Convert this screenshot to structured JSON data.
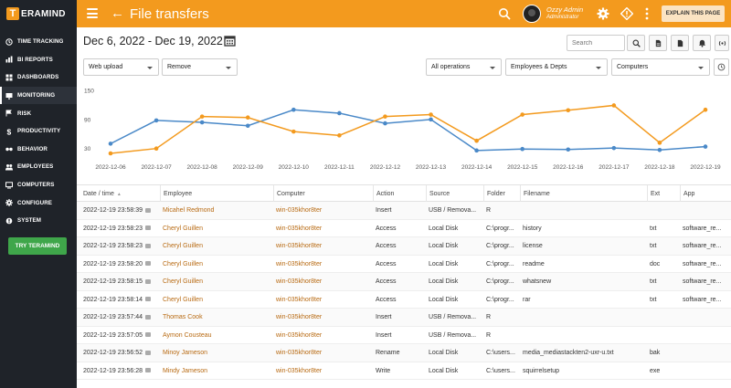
{
  "app": {
    "logo_letter": "T",
    "logo_text": "ERAMIND"
  },
  "sidebar": {
    "items": [
      {
        "label": "TIME TRACKING",
        "icon": "clock-icon"
      },
      {
        "label": "BI REPORTS",
        "icon": "chart-icon"
      },
      {
        "label": "DASHBOARDS",
        "icon": "dashboard-icon"
      },
      {
        "label": "MONITORING",
        "icon": "monitor-icon",
        "active": true
      },
      {
        "label": "RISK",
        "icon": "flag-icon"
      },
      {
        "label": "PRODUCTIVITY",
        "icon": "dollar-icon"
      },
      {
        "label": "BEHAVIOR",
        "icon": "glasses-icon"
      },
      {
        "label": "EMPLOYEES",
        "icon": "users-icon"
      },
      {
        "label": "COMPUTERS",
        "icon": "computer-icon"
      },
      {
        "label": "CONFIGURE",
        "icon": "gear-icon"
      },
      {
        "label": "SYSTEM",
        "icon": "system-icon"
      }
    ],
    "try_label": "TRY TERAMIND"
  },
  "header": {
    "title": "File transfers",
    "user_name": "Ozzy Admin",
    "user_role": "Administrator",
    "explain_label": "EXPLAIN THIS PAGE"
  },
  "toolbar": {
    "date_range": "Dec 6, 2022 - Dec 19, 2022",
    "search_placeholder": "Search"
  },
  "filters": {
    "type": "Web upload",
    "action": "Remove",
    "operations": "All operations",
    "scope": "Employees & Depts",
    "computers": "Computers"
  },
  "chart_data": {
    "type": "line",
    "x": [
      "2022-12-06",
      "2022-12-07",
      "2022-12-08",
      "2022-12-09",
      "2022-12-10",
      "2022-12-11",
      "2022-12-12",
      "2022-12-13",
      "2022-12-14",
      "2022-12-15",
      "2022-12-16",
      "2022-12-17",
      "2022-12-18",
      "2022-12-19"
    ],
    "yticks": [
      30,
      90,
      150
    ],
    "ylim": [
      20,
      150
    ],
    "series": [
      {
        "color": "#4a89c8",
        "values": [
          40,
          88,
          84,
          77,
          110,
          103,
          82,
          90,
          26,
          29,
          28,
          31,
          27,
          34
        ]
      },
      {
        "color": "#f39a1e",
        "values": [
          20,
          30,
          96,
          94,
          65,
          57,
          96,
          100,
          46,
          100,
          109,
          119,
          42,
          110
        ]
      }
    ]
  },
  "table": {
    "columns": [
      "Date / time",
      "Employee",
      "Computer",
      "Action",
      "Source",
      "Folder",
      "Filename",
      "Ext",
      "App"
    ],
    "rows": [
      [
        "2022-12-19 23:58:39",
        "Micahel Redmond",
        "win-035khor8ter",
        "Insert",
        "USB / Remova...",
        "R",
        "",
        "",
        ""
      ],
      [
        "2022-12-19 23:58:23",
        "Cheryl Guillen",
        "win-035khor8ter",
        "Access",
        "Local Disk",
        "C:\\progr...",
        "history",
        "txt",
        "software_re..."
      ],
      [
        "2022-12-19 23:58:23",
        "Cheryl Guillen",
        "win-035khor8ter",
        "Access",
        "Local Disk",
        "C:\\progr...",
        "license",
        "txt",
        "software_re..."
      ],
      [
        "2022-12-19 23:58:20",
        "Cheryl Guillen",
        "win-035khor8ter",
        "Access",
        "Local Disk",
        "C:\\progr...",
        "readme",
        "doc",
        "software_re..."
      ],
      [
        "2022-12-19 23:58:15",
        "Cheryl Guillen",
        "win-035khor8ter",
        "Access",
        "Local Disk",
        "C:\\progr...",
        "whatsnew",
        "txt",
        "software_re..."
      ],
      [
        "2022-12-19 23:58:14",
        "Cheryl Guillen",
        "win-035khor8ter",
        "Access",
        "Local Disk",
        "C:\\progr...",
        "rar",
        "txt",
        "software_re..."
      ],
      [
        "2022-12-19 23:57:44",
        "Thomas Cook",
        "win-035khor8ter",
        "Insert",
        "USB / Remova...",
        "R",
        "",
        "",
        ""
      ],
      [
        "2022-12-19 23:57:05",
        "Aymon Cousteau",
        "win-035khor8ter",
        "Insert",
        "USB / Remova...",
        "R",
        "",
        "",
        ""
      ],
      [
        "2022-12-19 23:56:52",
        "Minoy Jameson",
        "win-035khor8ter",
        "Rename",
        "Local Disk",
        "C:\\users...",
        "media_mediastackten2-uxr-u.txt",
        "bak",
        ""
      ],
      [
        "2022-12-19 23:56:28",
        "Mindy Jameson",
        "win-035khor8ter",
        "Write",
        "Local Disk",
        "C:\\users...",
        "squirrelsetup",
        "exe",
        ""
      ]
    ]
  }
}
